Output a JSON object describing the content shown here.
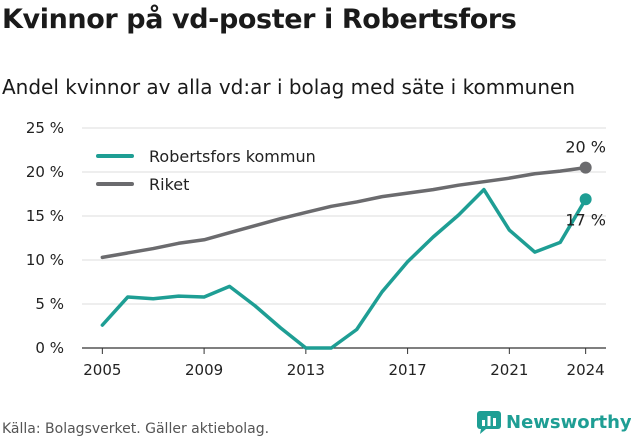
{
  "header": {
    "title": "Kvinnor på vd-poster i Robertsfors",
    "subtitle": "Andel kvinnor av alla vd:ar i bolag med säte i kommunen"
  },
  "footer": {
    "source": "Källa: Bolagsverket. Gäller aktiebolag.",
    "brand": "Newsworthy"
  },
  "chart_data": {
    "type": "line",
    "title": "Kvinnor på vd-poster i Robertsfors",
    "subtitle": "Andel kvinnor av alla vd:ar i bolag med säte i kommunen",
    "xlabel": "",
    "ylabel": "",
    "x": [
      2005,
      2006,
      2007,
      2008,
      2009,
      2010,
      2011,
      2012,
      2013,
      2014,
      2015,
      2016,
      2017,
      2018,
      2019,
      2020,
      2021,
      2022,
      2023,
      2024
    ],
    "x_ticks": [
      2005,
      2009,
      2013,
      2017,
      2021,
      2024
    ],
    "y_ticks": [
      0,
      5,
      10,
      15,
      20,
      25
    ],
    "y_tick_labels": [
      "0 %",
      "5 %",
      "10 %",
      "15 %",
      "20 %",
      "25 %"
    ],
    "ylim": [
      0,
      25
    ],
    "xlim": [
      2004.2,
      2024.8
    ],
    "grid": "horizontal",
    "legend_position": "top-left",
    "series": [
      {
        "name": "Robertsfors kommun",
        "color": "#1e9e94",
        "values": [
          2.6,
          5.8,
          5.6,
          5.9,
          5.8,
          7.0,
          4.8,
          2.3,
          0.0,
          0.0,
          2.1,
          6.4,
          9.8,
          12.6,
          15.1,
          18.0,
          13.4,
          10.9,
          12.0,
          16.9
        ],
        "end_label": "17 %"
      },
      {
        "name": "Riket",
        "color": "#6b6b6e",
        "values": [
          10.3,
          10.8,
          11.3,
          11.9,
          12.3,
          13.1,
          13.9,
          14.7,
          15.4,
          16.1,
          16.6,
          17.2,
          17.6,
          18.0,
          18.5,
          18.9,
          19.3,
          19.8,
          20.1,
          20.5
        ],
        "end_label": "20 %"
      }
    ]
  }
}
